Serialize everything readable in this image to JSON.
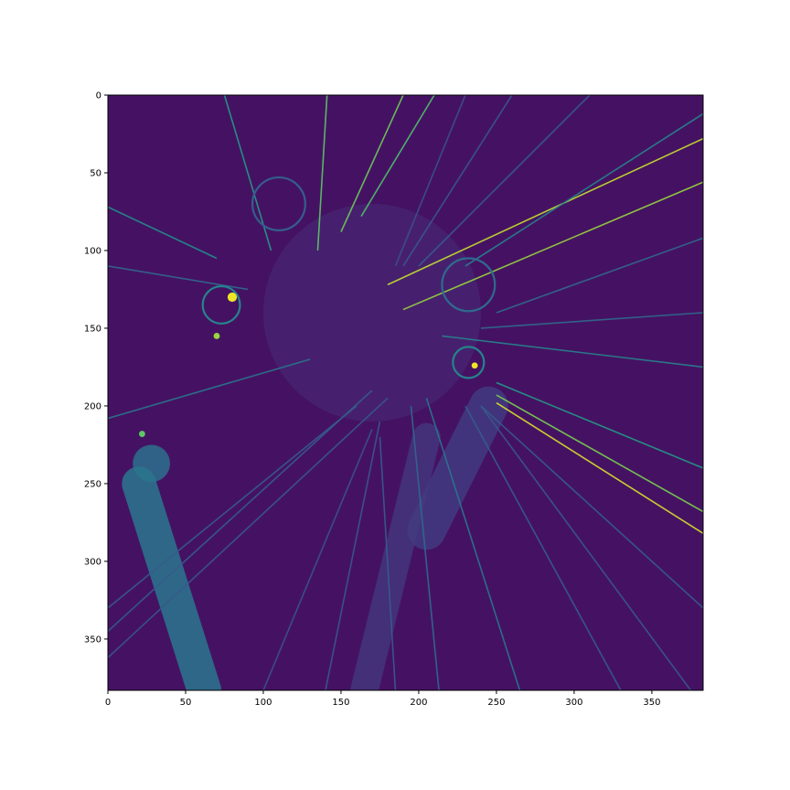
{
  "chart_data": {
    "type": "heatmap",
    "colormap": "viridis",
    "image_size": [
      384,
      384
    ],
    "xlim": [
      0,
      383
    ],
    "ylim": [
      383,
      0
    ],
    "xticks": [
      0,
      50,
      100,
      150,
      200,
      250,
      300,
      350
    ],
    "yticks": [
      0,
      50,
      100,
      150,
      200,
      250,
      300,
      350
    ],
    "tick_labels_x": [
      "0",
      "50",
      "100",
      "150",
      "200",
      "250",
      "300",
      "350"
    ],
    "tick_labels_y": [
      "0",
      "50",
      "100",
      "150",
      "200",
      "250",
      "300",
      "350"
    ],
    "background_value": 0.05,
    "streaks": [
      {
        "x1": 75,
        "y1": 0,
        "x2": 105,
        "y2": 100,
        "v": 0.55
      },
      {
        "x1": 141,
        "y1": 0,
        "x2": 135,
        "y2": 100,
        "v": 0.75
      },
      {
        "x1": 190,
        "y1": 0,
        "x2": 150,
        "y2": 88,
        "v": 0.78
      },
      {
        "x1": 210,
        "y1": 0,
        "x2": 163,
        "y2": 78,
        "v": 0.72
      },
      {
        "x1": 383,
        "y1": 28,
        "x2": 180,
        "y2": 122,
        "v": 0.92
      },
      {
        "x1": 383,
        "y1": 56,
        "x2": 190,
        "y2": 138,
        "v": 0.85
      },
      {
        "x1": 383,
        "y1": 12,
        "x2": 230,
        "y2": 110,
        "v": 0.45
      },
      {
        "x1": 383,
        "y1": 92,
        "x2": 250,
        "y2": 140,
        "v": 0.35
      },
      {
        "x1": 383,
        "y1": 175,
        "x2": 215,
        "y2": 155,
        "v": 0.45
      },
      {
        "x1": 383,
        "y1": 282,
        "x2": 250,
        "y2": 198,
        "v": 0.95
      },
      {
        "x1": 383,
        "y1": 268,
        "x2": 250,
        "y2": 193,
        "v": 0.8
      },
      {
        "x1": 383,
        "y1": 240,
        "x2": 250,
        "y2": 185,
        "v": 0.55
      },
      {
        "x1": 0,
        "y1": 72,
        "x2": 70,
        "y2": 105,
        "v": 0.5
      },
      {
        "x1": 0,
        "y1": 208,
        "x2": 130,
        "y2": 170,
        "v": 0.4
      },
      {
        "x1": 0,
        "y1": 330,
        "x2": 160,
        "y2": 200,
        "v": 0.3
      },
      {
        "x1": 0,
        "y1": 345,
        "x2": 170,
        "y2": 190,
        "v": 0.3
      },
      {
        "x1": 0,
        "y1": 362,
        "x2": 180,
        "y2": 195,
        "v": 0.28
      },
      {
        "x1": 213,
        "y1": 383,
        "x2": 195,
        "y2": 200,
        "v": 0.35
      },
      {
        "x1": 265,
        "y1": 383,
        "x2": 205,
        "y2": 195,
        "v": 0.4
      },
      {
        "x1": 185,
        "y1": 383,
        "x2": 175,
        "y2": 220,
        "v": 0.3
      },
      {
        "x1": 140,
        "y1": 383,
        "x2": 175,
        "y2": 210,
        "v": 0.28
      },
      {
        "x1": 100,
        "y1": 383,
        "x2": 170,
        "y2": 215,
        "v": 0.26
      },
      {
        "x1": 330,
        "y1": 383,
        "x2": 230,
        "y2": 200,
        "v": 0.3
      },
      {
        "x1": 375,
        "y1": 383,
        "x2": 240,
        "y2": 200,
        "v": 0.28
      },
      {
        "x1": 310,
        "y1": 0,
        "x2": 200,
        "y2": 110,
        "v": 0.3
      },
      {
        "x1": 260,
        "y1": 0,
        "x2": 190,
        "y2": 110,
        "v": 0.28
      },
      {
        "x1": 230,
        "y1": 0,
        "x2": 185,
        "y2": 110,
        "v": 0.25
      },
      {
        "x1": 383,
        "y1": 330,
        "x2": 240,
        "y2": 200,
        "v": 0.3
      },
      {
        "x1": 383,
        "y1": 140,
        "x2": 240,
        "y2": 150,
        "v": 0.35
      },
      {
        "x1": 0,
        "y1": 110,
        "x2": 90,
        "y2": 125,
        "v": 0.35
      }
    ],
    "blobs": [
      {
        "kind": "rod",
        "x1": 20,
        "y1": 250,
        "x2": 62,
        "y2": 383,
        "w": 22,
        "v": 0.4
      },
      {
        "kind": "rod",
        "x1": 205,
        "y1": 220,
        "x2": 165,
        "y2": 383,
        "w": 18,
        "v": 0.16
      },
      {
        "kind": "rod",
        "x1": 245,
        "y1": 200,
        "x2": 205,
        "y2": 280,
        "w": 25,
        "v": 0.18
      },
      {
        "kind": "ring",
        "cx": 110,
        "cy": 70,
        "r": 17,
        "v": 0.3
      },
      {
        "kind": "ring",
        "cx": 232,
        "cy": 122,
        "r": 17,
        "v": 0.35
      },
      {
        "kind": "ring",
        "cx": 73,
        "cy": 135,
        "r": 12,
        "v": 0.45
      },
      {
        "kind": "ring",
        "cx": 232,
        "cy": 172,
        "r": 10,
        "v": 0.45
      },
      {
        "kind": "hot",
        "cx": 80,
        "cy": 130,
        "r": 3,
        "v": 0.98
      },
      {
        "kind": "hot",
        "cx": 236,
        "cy": 174,
        "r": 2,
        "v": 0.98
      },
      {
        "kind": "hot",
        "cx": 70,
        "cy": 155,
        "r": 2,
        "v": 0.85
      },
      {
        "kind": "hot",
        "cx": 22,
        "cy": 218,
        "r": 2,
        "v": 0.75
      },
      {
        "kind": "patch",
        "cx": 28,
        "cy": 237,
        "r": 12,
        "v": 0.4
      },
      {
        "kind": "haze",
        "cx": 170,
        "cy": 140,
        "r": 70,
        "v": 0.12
      }
    ]
  }
}
